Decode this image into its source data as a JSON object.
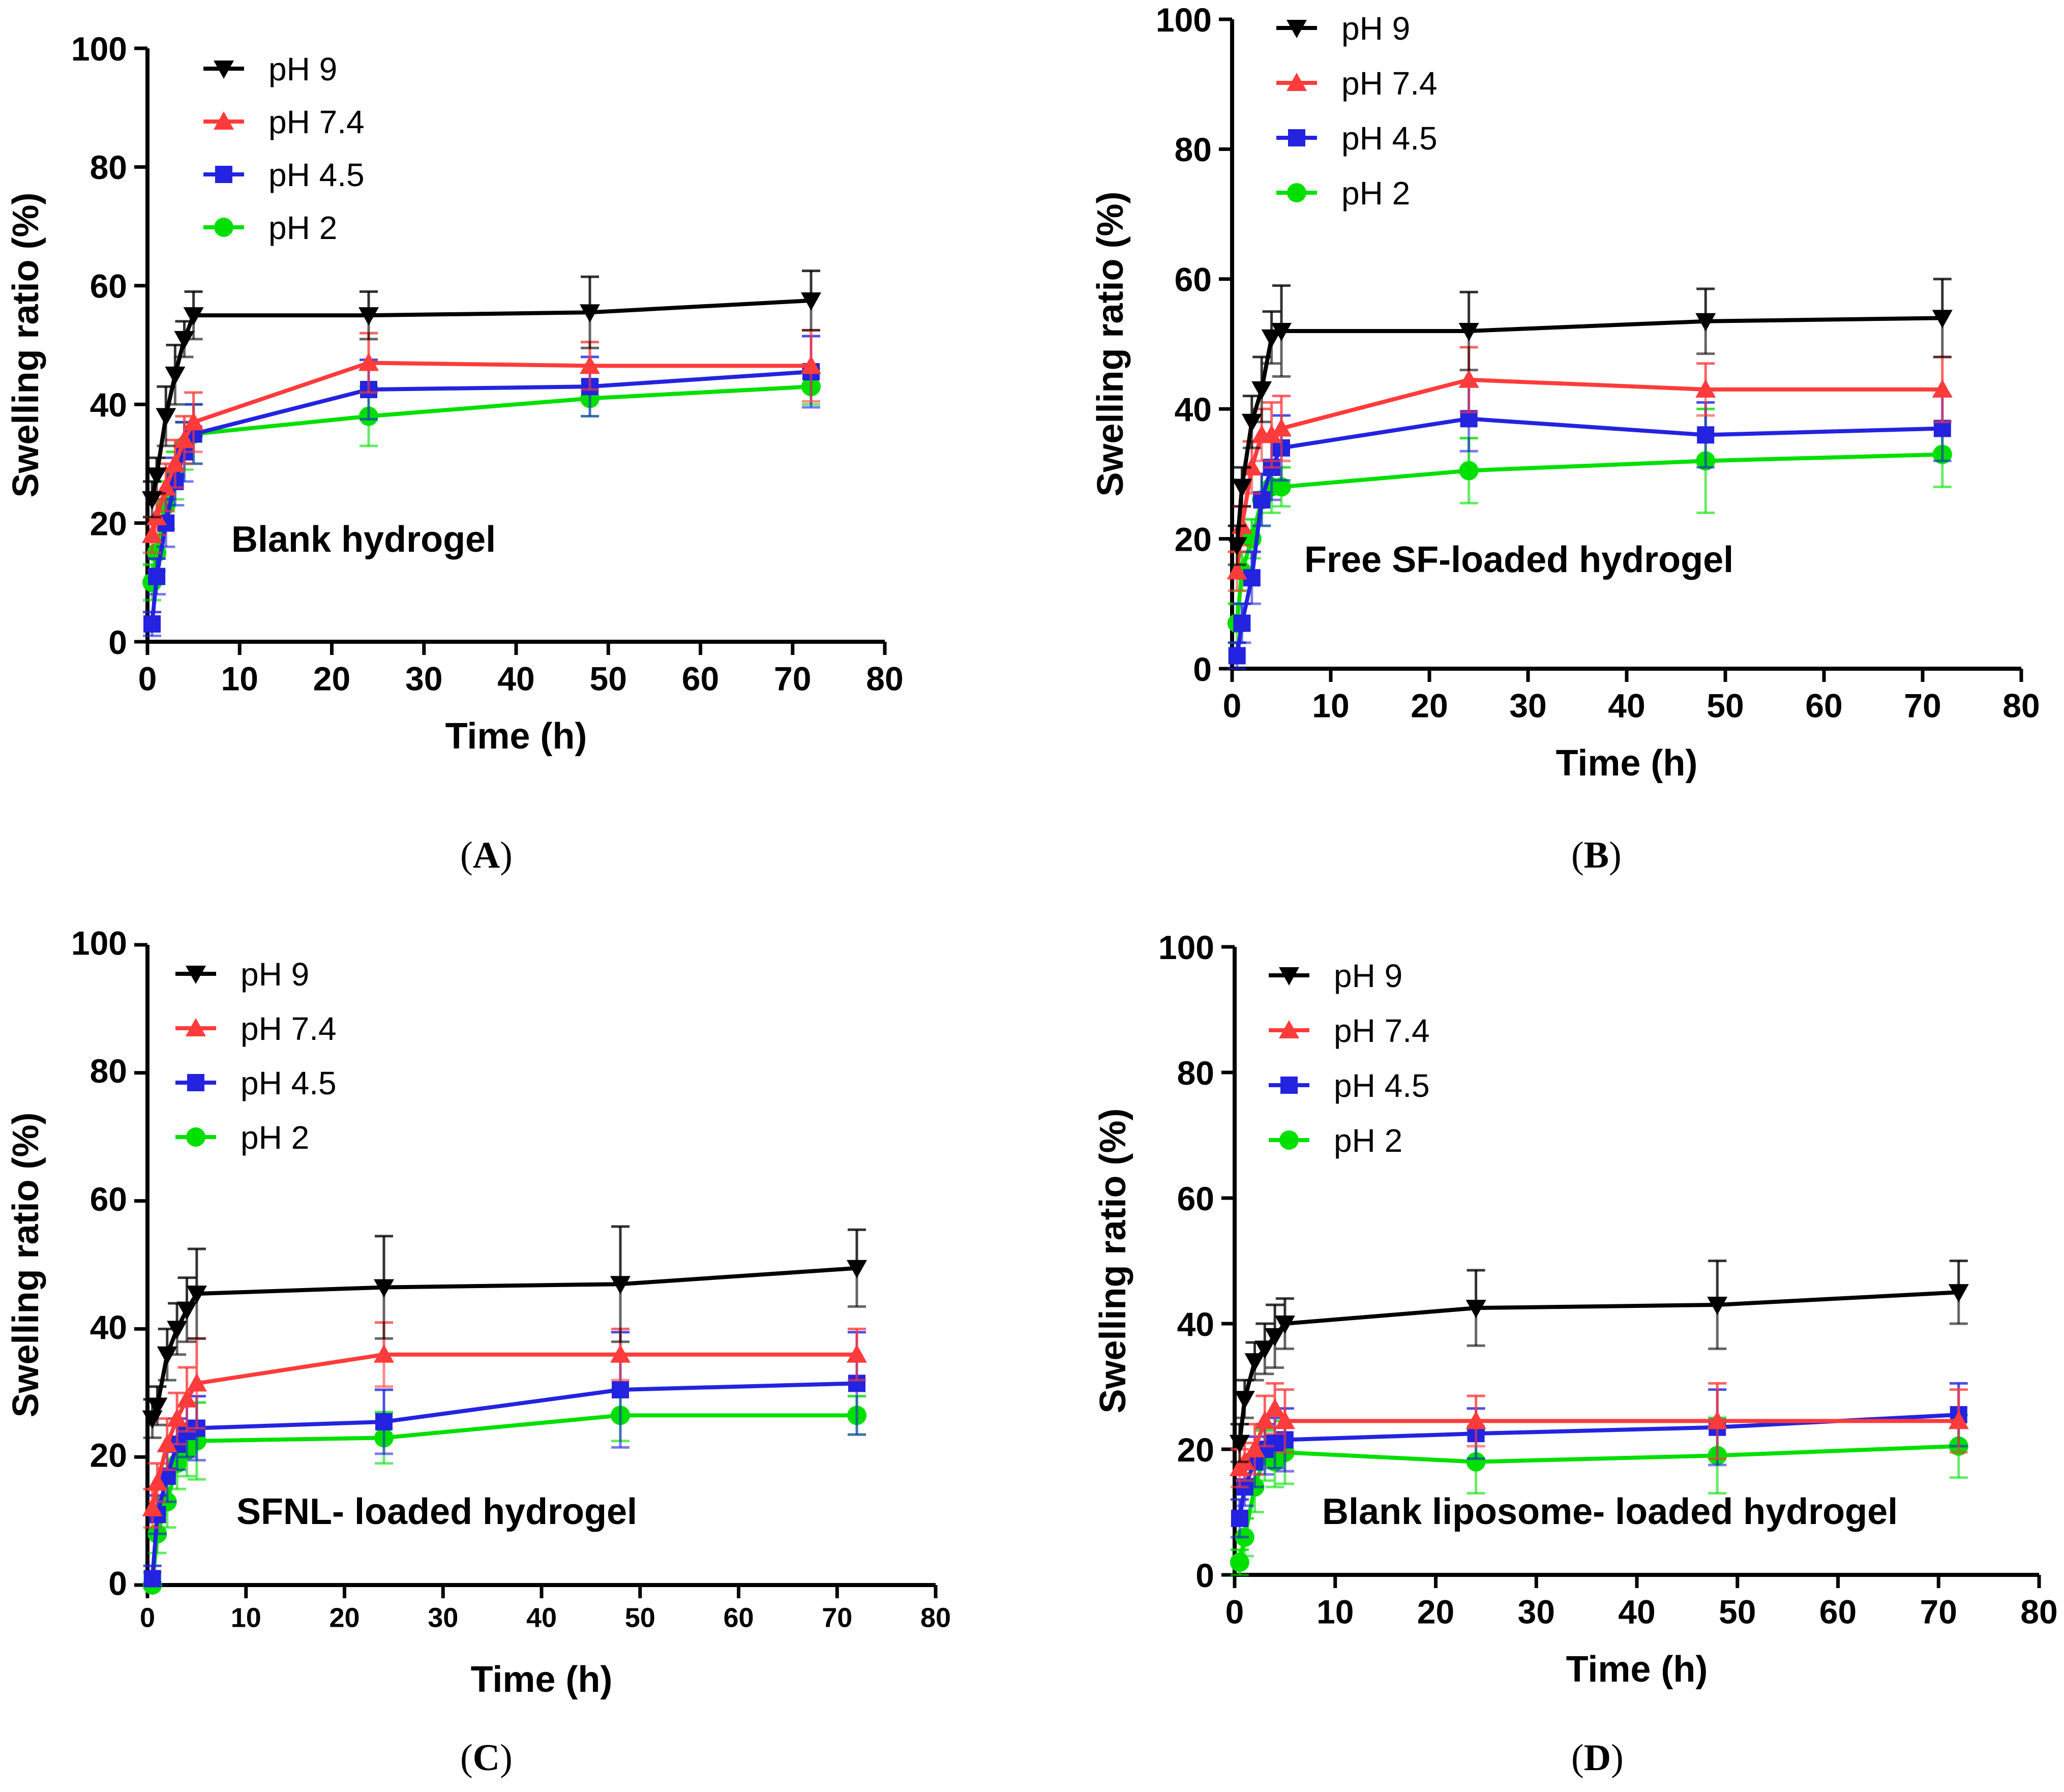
{
  "chart_data": [
    {
      "panel": "A",
      "type": "line",
      "title": "Blank hydrogel",
      "xlabel": "Time (h)",
      "ylabel": "Swelling ratio (%)",
      "xlim": [
        0,
        80
      ],
      "ylim": [
        0,
        100
      ],
      "xticks": [
        0,
        10,
        20,
        30,
        40,
        50,
        60,
        70,
        80
      ],
      "yticks": [
        0,
        20,
        40,
        60,
        80,
        100
      ],
      "legend": "top-left",
      "series": [
        {
          "name": "pH 9",
          "color": "#000000",
          "marker": "triangle-down",
          "x": [
            0.5,
            1,
            2,
            3,
            4,
            5,
            24,
            48,
            72
          ],
          "y": [
            24,
            28,
            38,
            45,
            51,
            55,
            55,
            55.5,
            57.5
          ],
          "err": [
            3,
            3,
            5,
            5,
            3,
            4,
            4,
            6,
            5
          ]
        },
        {
          "name": "pH 7.4",
          "color": "#ff3b3b",
          "marker": "triangle-up",
          "x": [
            0.5,
            1,
            2,
            3,
            4,
            5,
            24,
            48,
            72
          ],
          "y": [
            18,
            21,
            26,
            30,
            34,
            37,
            47,
            46.5,
            46.5
          ],
          "err": [
            3,
            3,
            4,
            4,
            4,
            5,
            5,
            4,
            6
          ]
        },
        {
          "name": "pH 4.5",
          "color": "#2323e0",
          "marker": "square",
          "x": [
            0.5,
            1,
            2,
            3,
            4,
            5,
            24,
            48,
            72
          ],
          "y": [
            3,
            11,
            20,
            27,
            32,
            35,
            42.5,
            43,
            45.5
          ],
          "err": [
            2,
            3,
            4,
            4,
            5,
            5,
            5,
            5,
            6
          ]
        },
        {
          "name": "pH 2",
          "color": "#00e000",
          "marker": "circle",
          "x": [
            0.5,
            1,
            2,
            3,
            4,
            5,
            24,
            48,
            72
          ],
          "y": [
            10,
            15,
            23,
            28,
            33,
            35,
            38,
            41,
            43
          ],
          "err": [
            3,
            3,
            4,
            4,
            4,
            5,
            5,
            3,
            3
          ]
        }
      ]
    },
    {
      "panel": "B",
      "type": "line",
      "title": "Free SF-loaded hydrogel",
      "xlabel": "Time (h)",
      "ylabel": "Swelling ratio (%)",
      "xlim": [
        0,
        80
      ],
      "ylim": [
        0,
        100
      ],
      "xticks": [
        0,
        10,
        20,
        30,
        40,
        50,
        60,
        70,
        80
      ],
      "yticks": [
        0,
        20,
        40,
        60,
        80,
        100
      ],
      "legend": "top-left",
      "series": [
        {
          "name": "pH 9",
          "color": "#000000",
          "marker": "triangle-down",
          "x": [
            0.5,
            1,
            2,
            3,
            4,
            5,
            24,
            48,
            72
          ],
          "y": [
            19,
            28,
            38,
            43,
            51,
            52,
            52,
            53.5,
            54
          ],
          "err": [
            3,
            3,
            4,
            5,
            4,
            7,
            6,
            5,
            6
          ]
        },
        {
          "name": "pH 7.4",
          "color": "#ff3b3b",
          "marker": "triangle-up",
          "x": [
            0.5,
            1,
            2,
            3,
            4,
            5,
            24,
            48,
            72
          ],
          "y": [
            15,
            22,
            31,
            36,
            36,
            37,
            44.5,
            43,
            43
          ],
          "err": [
            3,
            3,
            4,
            4,
            5,
            5,
            5,
            4,
            5
          ]
        },
        {
          "name": "pH 4.5",
          "color": "#2323e0",
          "marker": "square",
          "x": [
            0.5,
            1,
            2,
            3,
            4,
            5,
            24,
            48,
            72
          ],
          "y": [
            2,
            7,
            14,
            26,
            31,
            34,
            38.5,
            36,
            37
          ],
          "err": [
            2,
            3,
            4,
            4,
            5,
            5,
            5,
            5,
            5
          ]
        },
        {
          "name": "pH 2",
          "color": "#00e000",
          "marker": "circle",
          "x": [
            0.5,
            1,
            2,
            3,
            4,
            5,
            24,
            48,
            72
          ],
          "y": [
            7,
            15,
            20,
            26,
            28,
            28,
            30.5,
            32,
            33
          ],
          "err": [
            3,
            3,
            3,
            4,
            4,
            3,
            5,
            8,
            5
          ]
        }
      ]
    },
    {
      "panel": "C",
      "type": "line",
      "title": "SFNL- loaded hydrogel",
      "xlabel": "Time (h)",
      "ylabel": "Swelling ratio (%)",
      "xlim": [
        0,
        80
      ],
      "ylim": [
        0,
        100
      ],
      "xticks": [
        0,
        10,
        20,
        30,
        40,
        50,
        60,
        70,
        80
      ],
      "yticks": [
        0,
        20,
        40,
        60,
        80,
        100
      ],
      "legend": "top-left",
      "series": [
        {
          "name": "pH 9",
          "color": "#000000",
          "marker": "triangle-down",
          "x": [
            0.5,
            1,
            2,
            3,
            4,
            5,
            24,
            48,
            72
          ],
          "y": [
            26,
            28,
            36,
            40,
            43,
            45.5,
            46.5,
            47,
            49.5
          ],
          "err": [
            3,
            3,
            4,
            4,
            5,
            7,
            8,
            9,
            6
          ]
        },
        {
          "name": "pH 7.4",
          "color": "#ff3b3b",
          "marker": "triangle-up",
          "x": [
            0.5,
            1,
            2,
            3,
            4,
            5,
            24,
            48,
            72
          ],
          "y": [
            12,
            16,
            22,
            26,
            29,
            31.5,
            36,
            36,
            36
          ],
          "err": [
            3,
            3,
            4,
            4,
            5,
            7,
            5,
            4,
            4
          ]
        },
        {
          "name": "pH 4.5",
          "color": "#2323e0",
          "marker": "square",
          "x": [
            0.5,
            1,
            2,
            3,
            4,
            5,
            24,
            48,
            72
          ],
          "y": [
            1,
            11,
            17,
            22,
            24,
            24.5,
            25.5,
            30.5,
            31.5
          ],
          "err": [
            2,
            3,
            4,
            4,
            4,
            5,
            5,
            9,
            8
          ]
        },
        {
          "name": "pH 2",
          "color": "#00e000",
          "marker": "circle",
          "x": [
            0.5,
            1,
            2,
            3,
            4,
            5,
            24,
            48,
            72
          ],
          "y": [
            0,
            8,
            13,
            19,
            21,
            22.5,
            23,
            26.5,
            26.5
          ],
          "err": [
            2,
            3,
            4,
            4,
            4,
            6,
            4,
            4,
            3
          ]
        }
      ]
    },
    {
      "panel": "D",
      "type": "line",
      "title": "Blank liposome- loaded hydrogel",
      "xlabel": "Time (h)",
      "ylabel": "Swelling ratio (%)",
      "xlim": [
        0,
        80
      ],
      "ylim": [
        0,
        100
      ],
      "xticks": [
        0,
        10,
        20,
        30,
        40,
        50,
        60,
        70,
        80
      ],
      "yticks": [
        0,
        20,
        40,
        60,
        80,
        100
      ],
      "legend": "top-left",
      "series": [
        {
          "name": "pH 9",
          "color": "#000000",
          "marker": "triangle-down",
          "x": [
            0.5,
            1,
            2,
            3,
            4,
            5,
            24,
            48,
            72
          ],
          "y": [
            21,
            28,
            34,
            36,
            38,
            40,
            42.5,
            43,
            45
          ],
          "err": [
            3,
            3,
            3,
            4,
            5,
            4,
            6,
            7,
            5
          ]
        },
        {
          "name": "pH 7.4",
          "color": "#ff3b3b",
          "marker": "triangle-up",
          "x": [
            0.5,
            1,
            2,
            3,
            4,
            5,
            24,
            48,
            72
          ],
          "y": [
            17,
            18,
            20,
            24.5,
            26.5,
            24.5,
            24.5,
            24.5,
            24.5
          ],
          "err": [
            3,
            3,
            4,
            4,
            4,
            5,
            4,
            6,
            5
          ]
        },
        {
          "name": "pH 4.5",
          "color": "#2323e0",
          "marker": "square",
          "x": [
            0.5,
            1,
            2,
            3,
            4,
            5,
            24,
            48,
            72
          ],
          "y": [
            9,
            14,
            18,
            20,
            21,
            21.5,
            22.5,
            23.5,
            25.5
          ],
          "err": [
            3,
            3,
            4,
            4,
            4,
            5,
            4,
            6,
            5
          ]
        },
        {
          "name": "pH 2",
          "color": "#00e000",
          "marker": "circle",
          "x": [
            0.5,
            1,
            2,
            3,
            4,
            5,
            24,
            48,
            72
          ],
          "y": [
            2,
            6,
            14,
            19,
            18,
            19.5,
            18,
            19,
            20.5
          ],
          "err": [
            2,
            3,
            4,
            4,
            4,
            5,
            5,
            6,
            5
          ]
        }
      ]
    }
  ]
}
